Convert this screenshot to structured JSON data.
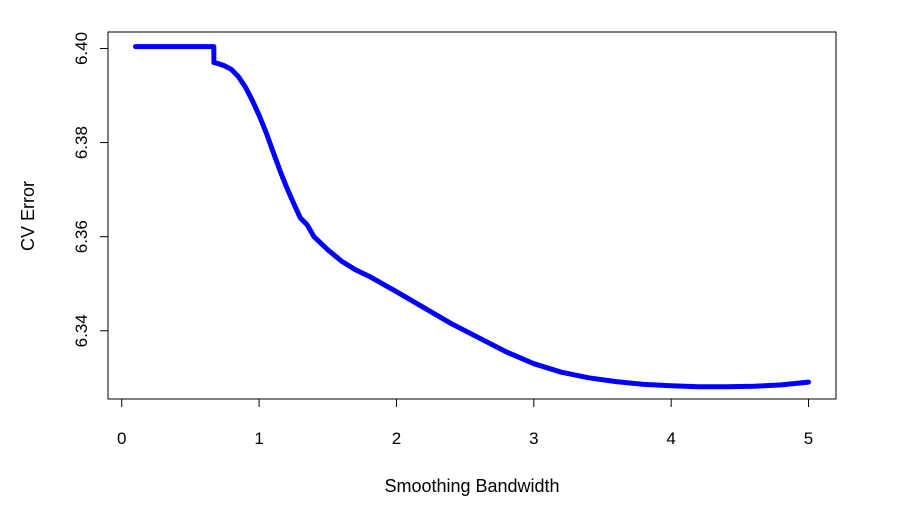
{
  "chart_data": {
    "type": "line",
    "title": "",
    "xlabel": "Smoothing Bandwidth",
    "ylabel": "CV Error",
    "xlim": [
      -0.1,
      5.2
    ],
    "ylim": [
      6.3255,
      6.4035
    ],
    "xticks": [
      0,
      1,
      2,
      3,
      4,
      5
    ],
    "xtick_labels": [
      "0",
      "1",
      "2",
      "3",
      "4",
      "5"
    ],
    "yticks": [
      6.34,
      6.36,
      6.38,
      6.4
    ],
    "ytick_labels": [
      "6.34",
      "6.36",
      "6.38",
      "6.40"
    ],
    "grid": false,
    "line_color": "#0000ff",
    "series": [
      {
        "x": [
          0.1,
          0.3,
          0.5,
          0.67,
          0.671,
          0.7,
          0.75,
          0.8,
          0.85,
          0.9,
          0.95,
          1.0,
          1.05,
          1.1,
          1.15,
          1.2,
          1.25,
          1.3,
          1.35,
          1.4,
          1.5,
          1.6,
          1.7,
          1.8,
          2.0,
          2.2,
          2.4,
          2.6,
          2.8,
          3.0,
          3.2,
          3.4,
          3.6,
          3.8,
          4.0,
          4.2,
          4.4,
          4.6,
          4.8,
          5.0
        ],
        "y": [
          6.4004,
          6.4004,
          6.4004,
          6.4004,
          6.397,
          6.3968,
          6.3963,
          6.3955,
          6.394,
          6.3918,
          6.389,
          6.3858,
          6.3822,
          6.3782,
          6.3742,
          6.3705,
          6.3672,
          6.364,
          6.3625,
          6.36,
          6.3572,
          6.3548,
          6.353,
          6.3516,
          6.3483,
          6.3449,
          6.3415,
          6.3385,
          6.3355,
          6.333,
          6.3312,
          6.33,
          6.3292,
          6.3286,
          6.3283,
          6.3281,
          6.3281,
          6.3282,
          6.3285,
          6.3291
        ]
      }
    ]
  }
}
